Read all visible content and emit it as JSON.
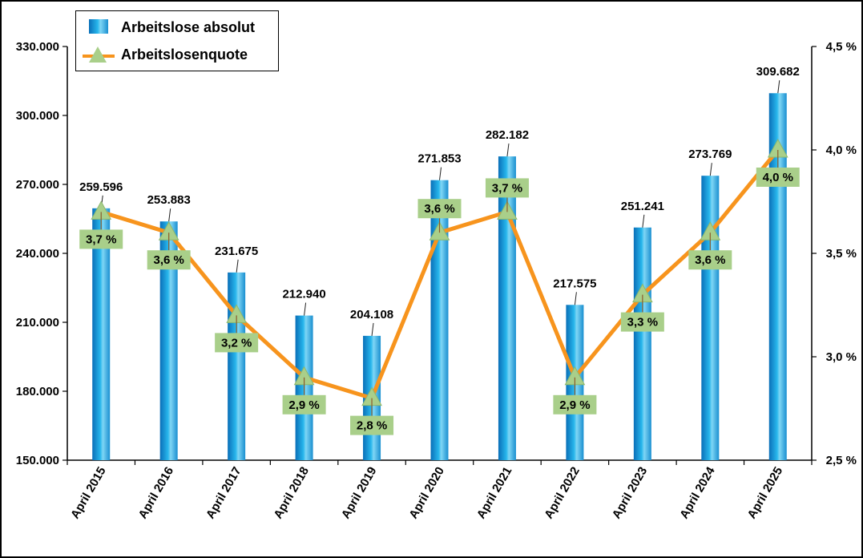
{
  "chart_data": {
    "type": "bar",
    "categories": [
      "April 2015",
      "April 2016",
      "April 2017",
      "April 2018",
      "April 2019",
      "April 2020",
      "April 2021",
      "April 2022",
      "April 2023",
      "April 2024",
      "April 2025"
    ],
    "series": [
      {
        "name": "Arbeitslose absolut",
        "type": "bar",
        "axis": "left",
        "values": [
          259596,
          253883,
          231675,
          212940,
          204108,
          271853,
          282182,
          217575,
          251241,
          273769,
          309682
        ],
        "labels": [
          "259.596",
          "253.883",
          "231.675",
          "212.940",
          "204.108",
          "271.853",
          "282.182",
          "217.575",
          "251.241",
          "273.769",
          "309.682"
        ],
        "color": "#1a9ad6"
      },
      {
        "name": "Arbeitslosenquote",
        "type": "line",
        "axis": "right",
        "values": [
          3.7,
          3.6,
          3.2,
          2.9,
          2.8,
          3.6,
          3.7,
          2.9,
          3.3,
          3.6,
          4.0
        ],
        "labels": [
          "3,7 %",
          "3,6 %",
          "3,2 %",
          "2,9 %",
          "2,8 %",
          "3,6 %",
          "3,7 %",
          "2,9 %",
          "3,3 %",
          "3,6 %",
          "4,0 %"
        ],
        "color": "#f7941d",
        "marker_color": "#a9cf8a"
      }
    ],
    "y_left": {
      "lim": [
        150000,
        330000
      ],
      "ticks": [
        150000,
        180000,
        210000,
        240000,
        270000,
        300000,
        330000
      ],
      "tick_labels": [
        "150.000",
        "180.000",
        "210.000",
        "240.000",
        "270.000",
        "300.000",
        "330.000"
      ]
    },
    "y_right": {
      "lim": [
        2.5,
        4.5
      ],
      "ticks": [
        2.5,
        3.0,
        3.5,
        4.0,
        4.5
      ],
      "tick_labels": [
        "2,5 %",
        "3,0 %",
        "3,5 %",
        "4,0 %",
        "4,5 %"
      ]
    },
    "grid": false,
    "legend_position": "top-left"
  }
}
